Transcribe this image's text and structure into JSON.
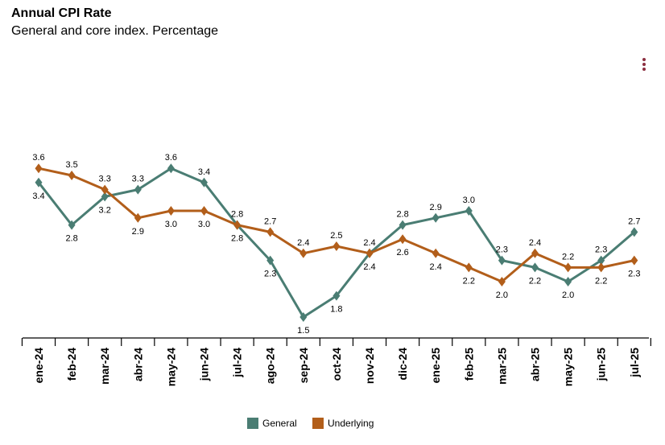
{
  "header": {
    "title": "Annual CPI Rate",
    "subtitle": "General and core index. Percentage"
  },
  "menu_icon": "vertical-dots-icon",
  "colors": {
    "general": "#4a7d73",
    "underlying": "#b25e1a",
    "menu": "#8b2e3f",
    "axis": "#000000"
  },
  "legend": {
    "general_label": "General",
    "underlying_label": "Underlying"
  },
  "chart_data": {
    "type": "line",
    "title": "Annual CPI Rate",
    "subtitle": "General and core index. Percentage",
    "xlabel": "",
    "ylabel": "",
    "categories": [
      "ene-24",
      "feb-24",
      "mar-24",
      "abr-24",
      "may-24",
      "jun-24",
      "jul-24",
      "ago-24",
      "sep-24",
      "oct-24",
      "nov-24",
      "dic-24",
      "ene-25",
      "feb-25",
      "mar-25",
      "abr-25",
      "may-25",
      "jun-25",
      "jul-25"
    ],
    "series": [
      {
        "name": "General",
        "values": [
          3.4,
          2.8,
          3.2,
          3.3,
          3.6,
          3.4,
          2.8,
          2.3,
          1.5,
          1.8,
          2.4,
          2.8,
          2.9,
          3.0,
          2.3,
          2.2,
          2.0,
          2.3,
          2.7
        ]
      },
      {
        "name": "Underlying",
        "values": [
          3.6,
          3.5,
          3.3,
          2.9,
          3.0,
          3.0,
          2.8,
          2.7,
          2.4,
          2.5,
          2.4,
          2.6,
          2.4,
          2.2,
          2.0,
          2.4,
          2.2,
          2.2,
          2.3
        ]
      }
    ],
    "grid": false,
    "legend_position": "bottom-center",
    "marker": "diamond",
    "data_labels": true
  }
}
